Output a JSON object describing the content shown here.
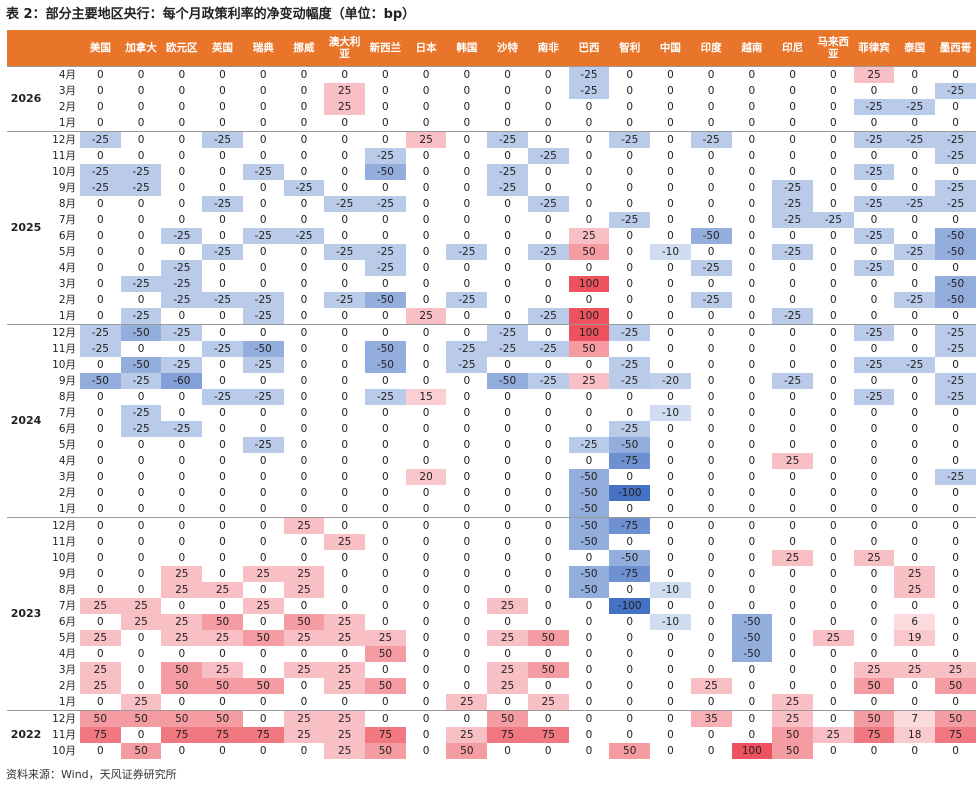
{
  "title": "表 2：部分主要地区央行：每个月政策利率的净变动幅度（单位：bp）",
  "source": "资料来源：Wind，天风证券研究所",
  "colors": {
    "header": "#e8752a"
  },
  "columns": [
    "美国",
    "加拿大",
    "欧元区",
    "英国",
    "瑞典",
    "挪威",
    "澳大利亚",
    "新西兰",
    "日本",
    "韩国",
    "沙特",
    "南非",
    "巴西",
    "智利",
    "中国",
    "印度",
    "越南",
    "印尼",
    "马来西亚",
    "菲律宾",
    "泰国",
    "墨西哥"
  ],
  "years": [
    {
      "year": "2026",
      "rows": [
        {
          "month": "4月",
          "values": [
            0,
            0,
            0,
            0,
            0,
            0,
            0,
            0,
            0,
            0,
            0,
            0,
            -25,
            0,
            0,
            0,
            0,
            0,
            0,
            25,
            0,
            0
          ]
        },
        {
          "month": "3月",
          "values": [
            0,
            0,
            0,
            0,
            0,
            0,
            25,
            0,
            0,
            0,
            0,
            0,
            -25,
            0,
            0,
            0,
            0,
            0,
            0,
            0,
            0,
            -25
          ]
        },
        {
          "month": "2月",
          "values": [
            0,
            0,
            0,
            0,
            0,
            0,
            25,
            0,
            0,
            0,
            0,
            0,
            0,
            0,
            0,
            0,
            0,
            0,
            0,
            -25,
            -25,
            0
          ]
        },
        {
          "month": "1月",
          "values": [
            0,
            0,
            0,
            0,
            0,
            0,
            0,
            0,
            0,
            0,
            0,
            0,
            0,
            0,
            0,
            0,
            0,
            0,
            0,
            0,
            0,
            0
          ]
        }
      ]
    },
    {
      "year": "2025",
      "rows": [
        {
          "month": "12月",
          "values": [
            -25,
            0,
            0,
            -25,
            0,
            0,
            0,
            0,
            25,
            0,
            -25,
            0,
            0,
            -25,
            0,
            -25,
            0,
            0,
            0,
            -25,
            -25,
            -25
          ]
        },
        {
          "month": "11月",
          "values": [
            0,
            0,
            0,
            0,
            0,
            0,
            0,
            -25,
            0,
            0,
            0,
            -25,
            0,
            0,
            0,
            0,
            0,
            0,
            0,
            0,
            0,
            -25
          ]
        },
        {
          "month": "10月",
          "values": [
            -25,
            -25,
            0,
            0,
            -25,
            0,
            0,
            -50,
            0,
            0,
            -25,
            0,
            0,
            0,
            0,
            0,
            0,
            0,
            0,
            -25,
            0,
            0
          ]
        },
        {
          "month": "9月",
          "values": [
            -25,
            -25,
            0,
            0,
            0,
            -25,
            0,
            0,
            0,
            0,
            -25,
            0,
            0,
            0,
            0,
            0,
            0,
            -25,
            0,
            0,
            0,
            -25
          ]
        },
        {
          "month": "8月",
          "values": [
            0,
            0,
            0,
            -25,
            0,
            0,
            -25,
            -25,
            0,
            0,
            0,
            -25,
            0,
            0,
            0,
            0,
            0,
            -25,
            0,
            -25,
            -25,
            -25
          ]
        },
        {
          "month": "7月",
          "values": [
            0,
            0,
            0,
            0,
            0,
            0,
            0,
            0,
            0,
            0,
            0,
            0,
            0,
            -25,
            0,
            0,
            0,
            -25,
            -25,
            0,
            0,
            0
          ]
        },
        {
          "month": "6月",
          "values": [
            0,
            0,
            -25,
            0,
            -25,
            -25,
            0,
            0,
            0,
            0,
            0,
            0,
            25,
            0,
            0,
            -50,
            0,
            0,
            0,
            -25,
            0,
            -50
          ]
        },
        {
          "month": "5月",
          "values": [
            0,
            0,
            0,
            -25,
            0,
            0,
            -25,
            -25,
            0,
            -25,
            0,
            -25,
            50,
            0,
            -10,
            0,
            0,
            -25,
            0,
            0,
            -25,
            -50
          ]
        },
        {
          "month": "4月",
          "values": [
            0,
            0,
            -25,
            0,
            0,
            0,
            0,
            -25,
            0,
            0,
            0,
            0,
            0,
            0,
            0,
            -25,
            0,
            0,
            0,
            -25,
            0,
            0
          ]
        },
        {
          "month": "3月",
          "values": [
            0,
            -25,
            -25,
            0,
            0,
            0,
            0,
            0,
            0,
            0,
            0,
            0,
            100,
            0,
            0,
            0,
            0,
            0,
            0,
            0,
            0,
            -50
          ]
        },
        {
          "month": "2月",
          "values": [
            0,
            0,
            -25,
            -25,
            -25,
            0,
            -25,
            -50,
            0,
            -25,
            0,
            0,
            0,
            0,
            0,
            -25,
            0,
            0,
            0,
            0,
            -25,
            -50
          ]
        },
        {
          "month": "1月",
          "values": [
            0,
            -25,
            0,
            0,
            -25,
            0,
            0,
            0,
            25,
            0,
            0,
            -25,
            100,
            0,
            0,
            0,
            0,
            -25,
            0,
            0,
            0,
            0
          ]
        }
      ]
    },
    {
      "year": "2024",
      "rows": [
        {
          "month": "12月",
          "values": [
            -25,
            -50,
            -25,
            0,
            0,
            0,
            0,
            0,
            0,
            0,
            -25,
            0,
            100,
            -25,
            0,
            0,
            0,
            0,
            0,
            -25,
            0,
            -25
          ]
        },
        {
          "month": "11月",
          "values": [
            -25,
            0,
            0,
            -25,
            -50,
            0,
            0,
            -50,
            0,
            -25,
            -25,
            -25,
            50,
            0,
            0,
            0,
            0,
            0,
            0,
            0,
            0,
            -25
          ]
        },
        {
          "month": "10月",
          "values": [
            0,
            -50,
            -25,
            0,
            -25,
            0,
            0,
            -50,
            0,
            -25,
            0,
            0,
            0,
            -25,
            0,
            0,
            0,
            0,
            0,
            -25,
            -25,
            0
          ]
        },
        {
          "month": "9月",
          "values": [
            -50,
            -25,
            -60,
            0,
            0,
            0,
            0,
            0,
            0,
            0,
            -50,
            -25,
            25,
            -25,
            -20,
            0,
            0,
            -25,
            0,
            0,
            0,
            -25
          ]
        },
        {
          "month": "8月",
          "values": [
            0,
            0,
            0,
            -25,
            -25,
            0,
            0,
            -25,
            15,
            0,
            0,
            0,
            0,
            0,
            0,
            0,
            0,
            0,
            0,
            -25,
            0,
            -25
          ]
        },
        {
          "month": "7月",
          "values": [
            0,
            -25,
            0,
            0,
            0,
            0,
            0,
            0,
            0,
            0,
            0,
            0,
            0,
            0,
            -10,
            0,
            0,
            0,
            0,
            0,
            0,
            0
          ]
        },
        {
          "month": "6月",
          "values": [
            0,
            -25,
            -25,
            0,
            0,
            0,
            0,
            0,
            0,
            0,
            0,
            0,
            0,
            -25,
            0,
            0,
            0,
            0,
            0,
            0,
            0,
            0
          ]
        },
        {
          "month": "5月",
          "values": [
            0,
            0,
            0,
            0,
            -25,
            0,
            0,
            0,
            0,
            0,
            0,
            0,
            -25,
            -50,
            0,
            0,
            0,
            0,
            0,
            0,
            0,
            0
          ]
        },
        {
          "month": "4月",
          "values": [
            0,
            0,
            0,
            0,
            0,
            0,
            0,
            0,
            0,
            0,
            0,
            0,
            0,
            -75,
            0,
            0,
            0,
            25,
            0,
            0,
            0,
            0
          ]
        },
        {
          "month": "3月",
          "values": [
            0,
            0,
            0,
            0,
            0,
            0,
            0,
            0,
            20,
            0,
            0,
            0,
            -50,
            0,
            0,
            0,
            0,
            0,
            0,
            0,
            0,
            -25
          ]
        },
        {
          "month": "2月",
          "values": [
            0,
            0,
            0,
            0,
            0,
            0,
            0,
            0,
            0,
            0,
            0,
            0,
            -50,
            -100,
            0,
            0,
            0,
            0,
            0,
            0,
            0,
            0
          ]
        },
        {
          "month": "1月",
          "values": [
            0,
            0,
            0,
            0,
            0,
            0,
            0,
            0,
            0,
            0,
            0,
            0,
            -50,
            0,
            0,
            0,
            0,
            0,
            0,
            0,
            0,
            0
          ]
        }
      ]
    },
    {
      "year": "2023",
      "rows": [
        {
          "month": "12月",
          "values": [
            0,
            0,
            0,
            0,
            0,
            25,
            0,
            0,
            0,
            0,
            0,
            0,
            -50,
            -75,
            0,
            0,
            0,
            0,
            0,
            0,
            0,
            0
          ]
        },
        {
          "month": "11月",
          "values": [
            0,
            0,
            0,
            0,
            0,
            0,
            25,
            0,
            0,
            0,
            0,
            0,
            -50,
            0,
            0,
            0,
            0,
            0,
            0,
            0,
            0,
            0
          ]
        },
        {
          "month": "10月",
          "values": [
            0,
            0,
            0,
            0,
            0,
            0,
            0,
            0,
            0,
            0,
            0,
            0,
            0,
            -50,
            0,
            0,
            0,
            25,
            0,
            25,
            0,
            0
          ]
        },
        {
          "month": "9月",
          "values": [
            0,
            0,
            25,
            0,
            25,
            25,
            0,
            0,
            0,
            0,
            0,
            0,
            -50,
            -75,
            0,
            0,
            0,
            0,
            0,
            0,
            25,
            0
          ]
        },
        {
          "month": "8月",
          "values": [
            0,
            0,
            25,
            25,
            0,
            25,
            0,
            0,
            0,
            0,
            0,
            0,
            -50,
            0,
            -10,
            0,
            0,
            0,
            0,
            0,
            25,
            0
          ]
        },
        {
          "month": "7月",
          "values": [
            25,
            25,
            0,
            0,
            25,
            0,
            0,
            0,
            0,
            0,
            25,
            0,
            0,
            -100,
            0,
            0,
            0,
            0,
            0,
            0,
            0,
            0
          ]
        },
        {
          "month": "6月",
          "values": [
            0,
            25,
            25,
            50,
            0,
            50,
            25,
            0,
            0,
            0,
            0,
            0,
            0,
            0,
            -10,
            0,
            -50,
            0,
            0,
            0,
            6,
            0
          ]
        },
        {
          "month": "5月",
          "values": [
            25,
            0,
            25,
            25,
            50,
            25,
            25,
            25,
            0,
            0,
            25,
            50,
            0,
            0,
            0,
            0,
            -50,
            0,
            25,
            0,
            19,
            0
          ]
        },
        {
          "month": "4月",
          "values": [
            0,
            0,
            0,
            0,
            0,
            0,
            0,
            50,
            0,
            0,
            0,
            0,
            0,
            0,
            0,
            0,
            -50,
            0,
            0,
            0,
            0,
            0
          ]
        },
        {
          "month": "3月",
          "values": [
            25,
            0,
            50,
            25,
            0,
            25,
            25,
            0,
            0,
            0,
            25,
            50,
            0,
            0,
            0,
            0,
            0,
            0,
            0,
            25,
            25,
            25
          ]
        },
        {
          "month": "2月",
          "values": [
            25,
            0,
            50,
            50,
            50,
            0,
            25,
            50,
            0,
            0,
            25,
            0,
            0,
            0,
            0,
            25,
            0,
            0,
            0,
            50,
            0,
            50
          ]
        },
        {
          "month": "1月",
          "values": [
            0,
            25,
            0,
            0,
            0,
            0,
            0,
            0,
            0,
            25,
            0,
            25,
            0,
            0,
            0,
            0,
            0,
            25,
            0,
            0,
            0,
            0
          ]
        }
      ]
    },
    {
      "year": "2022",
      "rows": [
        {
          "month": "12月",
          "values": [
            50,
            50,
            50,
            50,
            0,
            25,
            25,
            0,
            0,
            0,
            50,
            0,
            0,
            0,
            0,
            35,
            0,
            25,
            0,
            50,
            7,
            50
          ]
        },
        {
          "month": "11月",
          "values": [
            75,
            0,
            75,
            75,
            75,
            25,
            25,
            75,
            0,
            25,
            75,
            75,
            0,
            0,
            0,
            0,
            0,
            50,
            25,
            75,
            18,
            75
          ]
        },
        {
          "month": "10月",
          "values": [
            0,
            50,
            0,
            0,
            0,
            0,
            25,
            50,
            0,
            50,
            0,
            0,
            0,
            50,
            0,
            0,
            100,
            50,
            0,
            0,
            0,
            0
          ]
        }
      ]
    }
  ]
}
